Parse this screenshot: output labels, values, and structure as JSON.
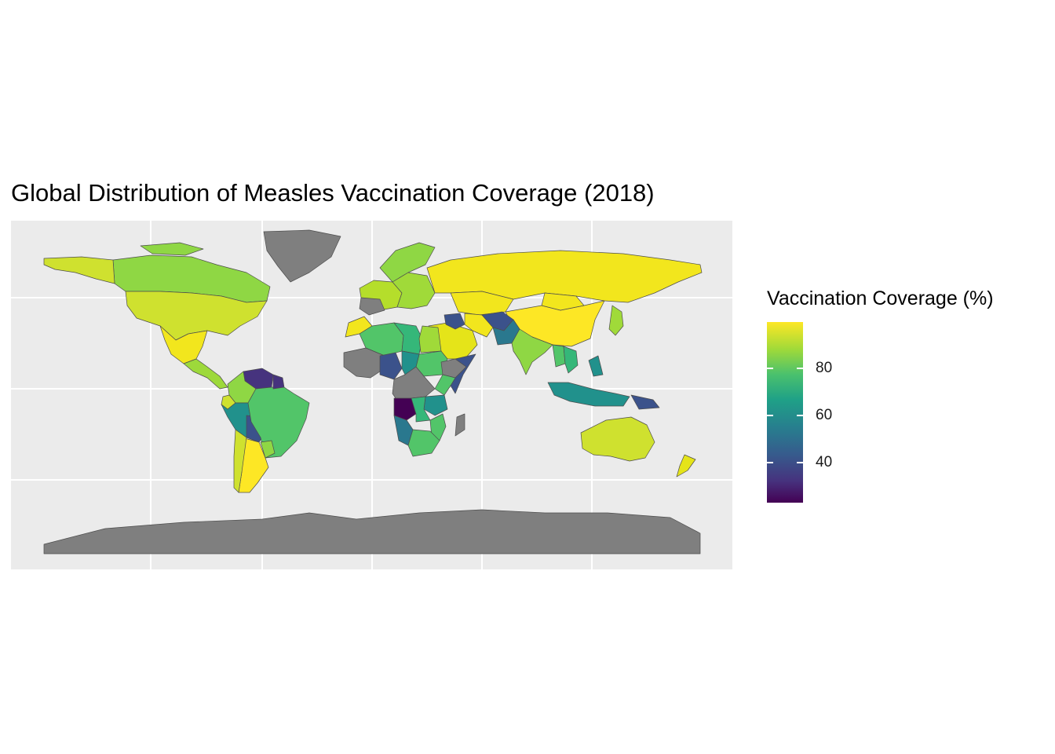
{
  "title": "Global Distribution of Measles Vaccination Coverage (2018)",
  "legend": {
    "title": "Vaccination Coverage (%)",
    "ticks": [
      {
        "label": "80",
        "value": 80
      },
      {
        "label": "60",
        "value": 60
      },
      {
        "label": "40",
        "value": 40
      }
    ],
    "range": [
      23,
      99
    ],
    "palette": "viridis",
    "na_color": "#7f7f7f"
  },
  "colors": {
    "panel": "#ebebeb",
    "grid": "#ffffff",
    "border": "#4d4d4d",
    "no_data": "#7f7f7f"
  },
  "regions": [
    {
      "name": "Canada",
      "color": "#8fd744"
    },
    {
      "name": "Alaska",
      "color": "#cfe12f"
    },
    {
      "name": "United States",
      "color": "#cfe12f"
    },
    {
      "name": "Greenland",
      "color": "#7f7f7f"
    },
    {
      "name": "Mexico",
      "color": "#f2e61d"
    },
    {
      "name": "Central America",
      "color": "#9dd93b"
    },
    {
      "name": "Venezuela",
      "color": "#46337e"
    },
    {
      "name": "Colombia",
      "color": "#8fd744"
    },
    {
      "name": "Ecuador",
      "color": "#cfe12f"
    },
    {
      "name": "Peru",
      "color": "#21918c"
    },
    {
      "name": "Bolivia",
      "color": "#3b528b"
    },
    {
      "name": "Brazil",
      "color": "#52c569"
    },
    {
      "name": "Argentina",
      "color": "#fde725"
    },
    {
      "name": "Chile",
      "color": "#cfe12f"
    },
    {
      "name": "Paraguay",
      "color": "#8fd744"
    },
    {
      "name": "Guyana",
      "color": "#46337e"
    },
    {
      "name": "Scandinavia",
      "color": "#8fd744"
    },
    {
      "name": "Western Europe",
      "color": "#b5de2b"
    },
    {
      "name": "Spain",
      "color": "#7f7f7f"
    },
    {
      "name": "Eastern Europe",
      "color": "#a0da39"
    },
    {
      "name": "Russia",
      "color": "#f2e61d"
    },
    {
      "name": "Kazakhstan",
      "color": "#f2e61d"
    },
    {
      "name": "China",
      "color": "#fde725"
    },
    {
      "name": "Mongolia",
      "color": "#f2e61d"
    },
    {
      "name": "Japan",
      "color": "#a0da39"
    },
    {
      "name": "Middle East",
      "color": "#e5e419"
    },
    {
      "name": "Iraq",
      "color": "#3b528b"
    },
    {
      "name": "Iran",
      "color": "#f2e61d"
    },
    {
      "name": "Afghanistan",
      "color": "#3b528b"
    },
    {
      "name": "Pakistan",
      "color": "#2a788e"
    },
    {
      "name": "India",
      "color": "#8fd744"
    },
    {
      "name": "Myanmar",
      "color": "#52c569"
    },
    {
      "name": "Thailand",
      "color": "#35b779"
    },
    {
      "name": "Philippines",
      "color": "#21918c"
    },
    {
      "name": "Indonesia",
      "color": "#21918c"
    },
    {
      "name": "Papua New Guinea",
      "color": "#3b528b"
    },
    {
      "name": "Australia",
      "color": "#cfe12f"
    },
    {
      "name": "New Zealand",
      "color": "#e5e419"
    },
    {
      "name": "Morocco",
      "color": "#f2e61d"
    },
    {
      "name": "Algeria",
      "color": "#52c569"
    },
    {
      "name": "Libya",
      "color": "#35b779"
    },
    {
      "name": "Egypt",
      "color": "#a0da39"
    },
    {
      "name": "Sudan",
      "color": "#52c569"
    },
    {
      "name": "West Africa",
      "color": "#7f7f7f"
    },
    {
      "name": "Nigeria",
      "color": "#3b528b"
    },
    {
      "name": "Chad",
      "color": "#21918c"
    },
    {
      "name": "Ethiopia",
      "color": "#7f7f7f"
    },
    {
      "name": "Somalia",
      "color": "#3b528b"
    },
    {
      "name": "Kenya",
      "color": "#52c569"
    },
    {
      "name": "Central Africa",
      "color": "#7f7f7f"
    },
    {
      "name": "Angola",
      "color": "#440154"
    },
    {
      "name": "Tanzania",
      "color": "#21918c"
    },
    {
      "name": "Zambia",
      "color": "#35b779"
    },
    {
      "name": "Namibia",
      "color": "#2a788e"
    },
    {
      "name": "Mozambique",
      "color": "#52c569"
    },
    {
      "name": "South Africa",
      "color": "#52c569"
    },
    {
      "name": "Madagascar",
      "color": "#7f7f7f"
    },
    {
      "name": "Antarctica",
      "color": "#7f7f7f"
    }
  ]
}
